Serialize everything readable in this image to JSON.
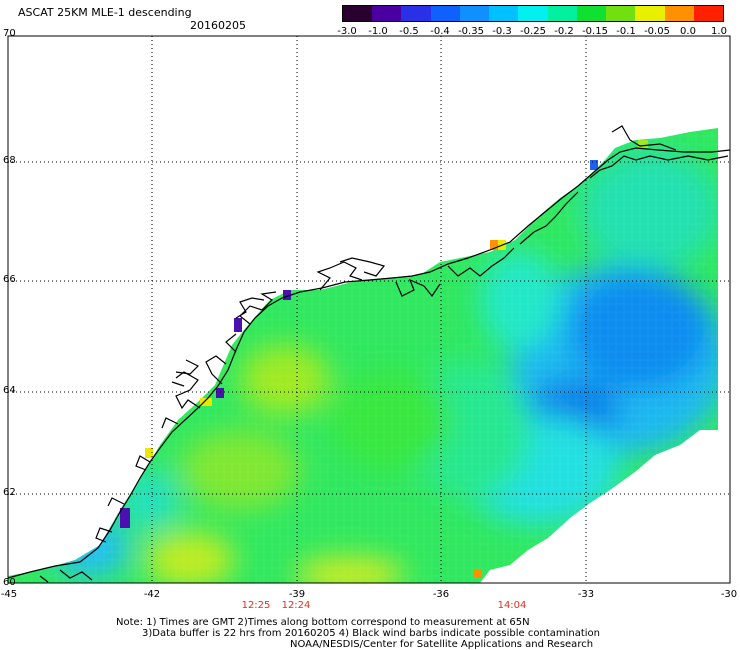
{
  "header": {
    "title": "ASCAT 25KM MLE-1 descending",
    "date": "20160205"
  },
  "colorbar": {
    "labels": [
      "-3.0",
      "-1.0",
      "-0.5",
      "-0.4",
      "-0.35",
      "-0.3",
      "-0.25",
      "-0.2",
      "-0.15",
      "-0.1",
      "-0.05",
      "0.0",
      "1.0"
    ],
    "colors": [
      "#2a0030",
      "#4a00a0",
      "#2a30e8",
      "#1060ff",
      "#1090ff",
      "#00c0ff",
      "#00f0f0",
      "#00f0a0",
      "#10e030",
      "#70e010",
      "#e8f000",
      "#ff9000",
      "#ff2000"
    ]
  },
  "axes": {
    "lat_labels": [
      "70",
      "68",
      "66",
      "64",
      "62",
      "60"
    ],
    "lon_labels": [
      "-45",
      "-42",
      "-39",
      "-36",
      "-33",
      "-30"
    ],
    "time_labels": [
      "12:25",
      "12:24",
      "14:04"
    ]
  },
  "notes": {
    "line1": "Note: 1) Times are GMT 2)Times along bottom correspond to measurement at 65N",
    "line2": "3)Data buffer is 22 hrs from 20160205 4) Black wind barbs indicate possible contamination",
    "line3": "NOAA/NESDIS/Center for Satellite Applications and Research"
  }
}
